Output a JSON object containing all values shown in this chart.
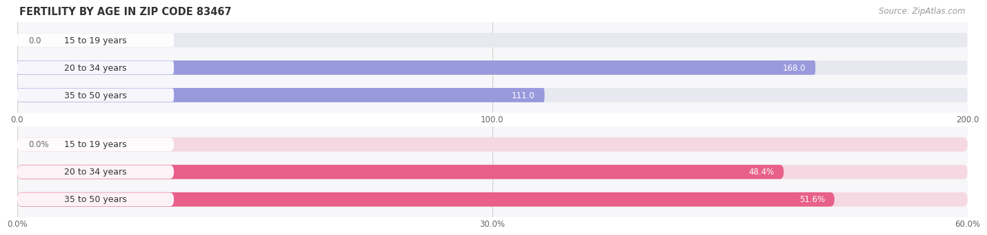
{
  "title": "FERTILITY BY AGE IN ZIP CODE 83467",
  "source": "Source: ZipAtlas.com",
  "top_chart": {
    "categories": [
      "15 to 19 years",
      "20 to 34 years",
      "35 to 50 years"
    ],
    "values": [
      0.0,
      168.0,
      111.0
    ],
    "xlim": [
      0,
      200
    ],
    "xticks": [
      0.0,
      100.0,
      200.0
    ],
    "xtick_labels": [
      "0.0",
      "100.0",
      "200.0"
    ],
    "bar_color": "#9999dd",
    "bar_bg_color": "#e8e8f0"
  },
  "bottom_chart": {
    "categories": [
      "15 to 19 years",
      "20 to 34 years",
      "35 to 50 years"
    ],
    "values": [
      0.0,
      48.4,
      51.6
    ],
    "xlim": [
      0,
      60
    ],
    "xticks": [
      0.0,
      30.0,
      60.0
    ],
    "xtick_labels": [
      "0.0%",
      "30.0%",
      "60.0%"
    ],
    "bar_color": "#e8608a",
    "bar_bg_color": "#f5d8e2"
  },
  "fig_bg_color": "#ffffff",
  "chart_bg_color": "#f7f7f9",
  "label_pill_color": "#ffffff",
  "label_text_color": "#333333",
  "value_color_inside": "#ffffff",
  "value_color_outside": "#666666",
  "title_color": "#333333",
  "source_color": "#999999",
  "grid_color": "#cccccc",
  "title_fontsize": 10.5,
  "source_fontsize": 8.5,
  "label_fontsize": 9,
  "value_fontsize": 8.5,
  "tick_fontsize": 8.5
}
